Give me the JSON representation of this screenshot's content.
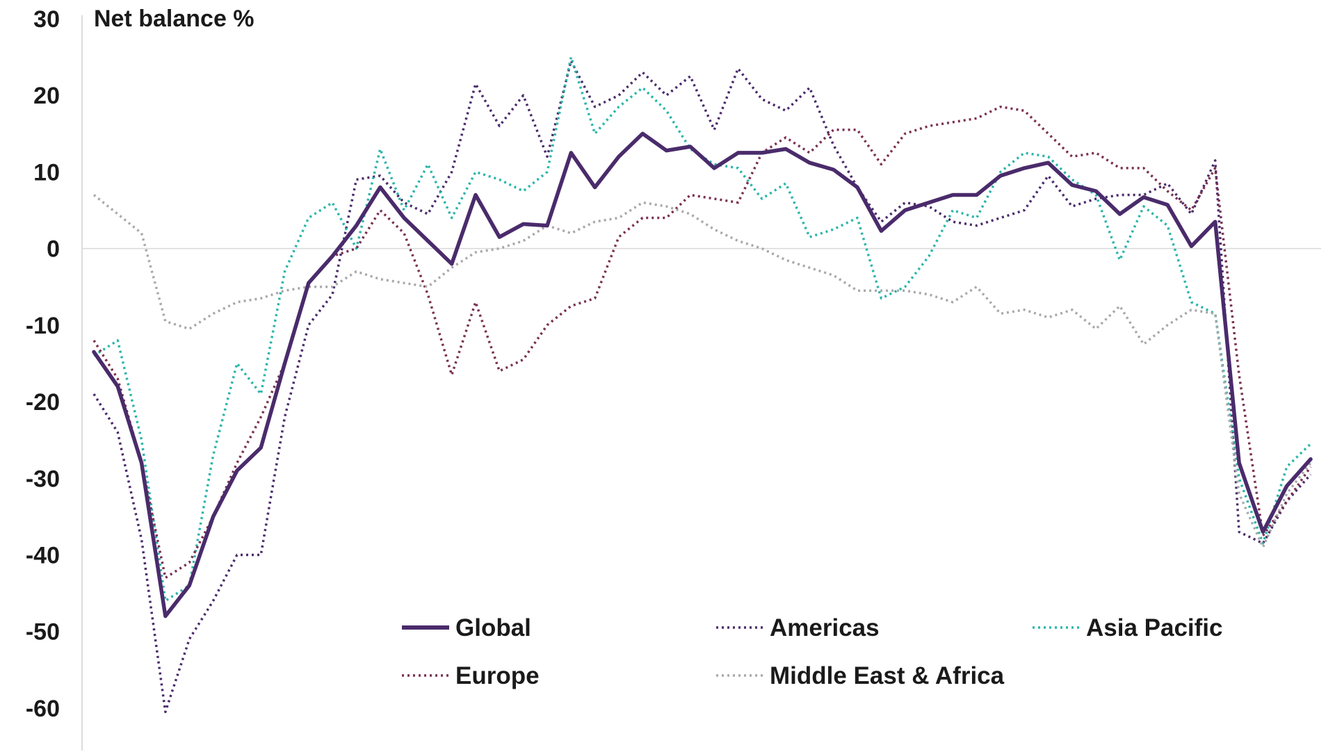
{
  "chart_data": {
    "type": "line",
    "title": "",
    "ylabel": "Net balance %",
    "xlabel": "",
    "ylim": [
      -66,
      30
    ],
    "yticks": [
      30,
      20,
      10,
      0,
      -10,
      -20,
      -30,
      -40,
      -50,
      -60
    ],
    "grid": false,
    "zero_line": true,
    "legend_position": "bottom-center",
    "series": [
      {
        "name": "Global",
        "color": "#4a2b6b",
        "style": "solid",
        "values": [
          -13.5,
          -18,
          -28,
          -48,
          -44,
          -35,
          -29,
          -26,
          -15,
          -4.5,
          -1,
          3,
          8,
          4,
          1,
          -2,
          7,
          1.5,
          3.2,
          3,
          12.5,
          8,
          12,
          15,
          12.8,
          13.3,
          10.5,
          12.5,
          12.5,
          13,
          11.2,
          10.3,
          8,
          2.3,
          5,
          6,
          7,
          7,
          9.5,
          10.5,
          11.2,
          8.3,
          7.5,
          4.5,
          6.7,
          5.7,
          0.3,
          3.5,
          -28,
          -37,
          -31,
          -27.5
        ]
      },
      {
        "name": "Americas",
        "color": "#4a2b6b",
        "style": "dotted",
        "values": [
          -19,
          -24,
          -38,
          -60.5,
          -51,
          -46,
          -40,
          -40,
          -22,
          -10,
          -6,
          9,
          9.5,
          6,
          4.5,
          10,
          21.5,
          16,
          20,
          12,
          24.5,
          18.5,
          20,
          23,
          20,
          22.5,
          15.5,
          23.5,
          19.5,
          18,
          21,
          13.5,
          8,
          3.5,
          6,
          5.5,
          3.5,
          3,
          4,
          5,
          9.5,
          5.5,
          6.5,
          7,
          7,
          8.5,
          4.5,
          11.5,
          -37,
          -38.5,
          -33,
          -29.5
        ]
      },
      {
        "name": "Asia Pacific",
        "color": "#2bb5aa",
        "style": "dotted",
        "values": [
          -14,
          -12,
          -25,
          -46,
          -44,
          -27,
          -15,
          -19,
          -3,
          4,
          6,
          0,
          13,
          5,
          11,
          4,
          10,
          9,
          7.5,
          10,
          25,
          15,
          18.5,
          21,
          18,
          13,
          11,
          10.5,
          6.5,
          8.5,
          1.5,
          2.5,
          4,
          -6.5,
          -5,
          -1,
          5,
          4,
          10,
          12.5,
          12,
          9,
          7,
          -1.5,
          5.5,
          3,
          -7,
          -8.5,
          -30,
          -38.5,
          -28.5,
          -25.5
        ]
      },
      {
        "name": "Europe",
        "color": "#7a3150",
        "style": "dotted",
        "values": [
          -12,
          -17,
          -28,
          -43,
          -41,
          -35,
          -28,
          -22,
          -15,
          -4.5,
          -1,
          0,
          5,
          2,
          -6,
          -16.5,
          -7,
          -16,
          -14.5,
          -10,
          -7.5,
          -6.5,
          1.5,
          4,
          4,
          7,
          6.5,
          6,
          12.5,
          14.5,
          12.5,
          15.5,
          15.5,
          11,
          15,
          16,
          16.5,
          17,
          18.5,
          18,
          15,
          12,
          12.5,
          10.5,
          10.5,
          7.5,
          5,
          10.5,
          -16.5,
          -37.5,
          -33,
          -28.5
        ]
      },
      {
        "name": "Middle East & Africa",
        "color": "#a9a9a9",
        "style": "dotted",
        "values": [
          7,
          4.5,
          2,
          -9.5,
          -10.5,
          -8.5,
          -7,
          -6.5,
          -5.5,
          -5,
          -5,
          -3,
          -4,
          -4.5,
          -5,
          -2.5,
          -0.5,
          0,
          1,
          3,
          2,
          3.5,
          4,
          6,
          5.5,
          4.5,
          2.5,
          1,
          0,
          -1.5,
          -2.5,
          -3.5,
          -5.5,
          -5.5,
          -5.5,
          -6,
          -7,
          -5,
          -8.5,
          -8,
          -9,
          -8,
          -10.5,
          -7.5,
          -12.5,
          -10,
          -8,
          -8.5,
          -32,
          -39,
          -32,
          -28
        ]
      }
    ]
  }
}
